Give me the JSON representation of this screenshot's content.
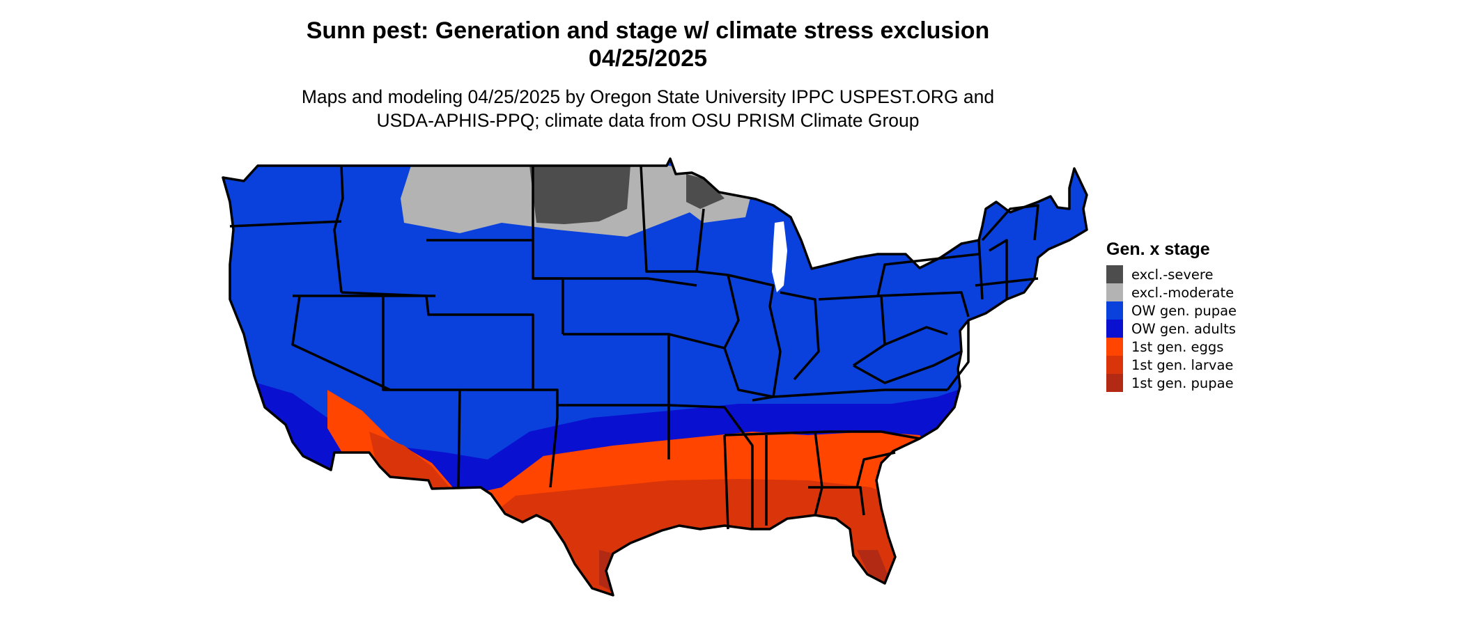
{
  "title": {
    "line1": "Sunn pest: Generation and stage w/ climate stress exclusion",
    "line2": "04/25/2025"
  },
  "subtitle": {
    "line1": "Maps and modeling 04/25/2025 by Oregon State University IPPC USPEST.ORG and",
    "line2": "USDA-APHIS-PPQ; climate data from OSU PRISM Climate Group"
  },
  "legend": {
    "title": "Gen. x stage",
    "items": [
      {
        "label": "excl.-severe",
        "color": "#4d4d4d"
      },
      {
        "label": "excl.-moderate",
        "color": "#b3b3b3"
      },
      {
        "label": "OW gen. pupae",
        "color": "#0a41dc"
      },
      {
        "label": "OW gen. adults",
        "color": "#0a10cf"
      },
      {
        "label": "1st gen. eggs",
        "color": "#ff4500"
      },
      {
        "label": "1st gen. larvae",
        "color": "#d9340a"
      },
      {
        "label": "1st gen. pupae",
        "color": "#b22a14"
      }
    ]
  }
}
